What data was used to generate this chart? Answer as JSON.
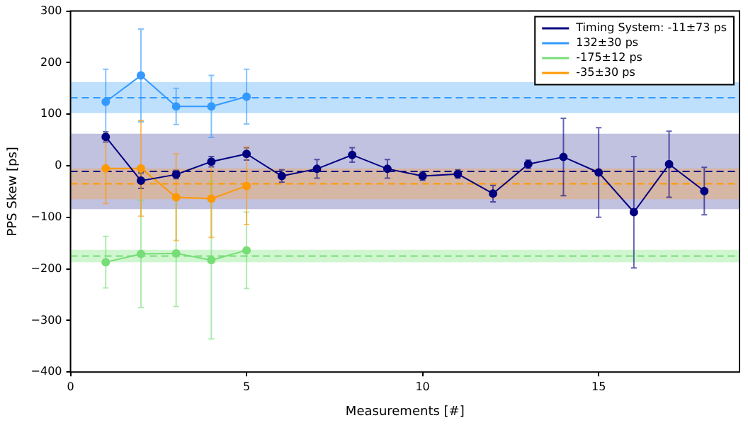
{
  "chart_data": {
    "type": "line",
    "xlabel": "Measurements [#]",
    "ylabel": "PPS Skew [ps]",
    "xlim": [
      0,
      19
    ],
    "xticks": [
      0,
      5,
      10,
      15
    ],
    "ylim": [
      -400,
      300
    ],
    "yticks": [
      {
        "value": -400,
        "label": "−400"
      },
      {
        "value": -300,
        "label": "−300"
      },
      {
        "value": -200,
        "label": "−200"
      },
      {
        "value": -100,
        "label": "−100"
      },
      0,
      100,
      200,
      300
    ],
    "grid": false,
    "legend": "top right",
    "marker": "circle",
    "series": [
      {
        "name": "Timing System: -11±73 ps",
        "color": "#000080",
        "x": [
          1,
          2,
          3,
          4,
          5,
          6,
          7,
          8,
          9,
          10,
          11,
          12,
          13,
          14,
          15,
          16,
          17,
          18
        ],
        "values": [
          56,
          -29,
          -17,
          8,
          23,
          -20,
          -6,
          21,
          -6,
          -20,
          -16,
          -54,
          3,
          17,
          -13,
          -90,
          3,
          -49
        ],
        "errors": [
          10,
          15,
          8,
          10,
          12,
          12,
          18,
          14,
          18,
          8,
          8,
          16,
          8,
          75,
          87,
          108,
          64,
          46
        ]
      },
      {
        "name": "132±30 ps",
        "color": "#3399ff",
        "x": [
          1,
          2,
          3,
          4,
          5
        ],
        "values": [
          124,
          175,
          115,
          115,
          134
        ],
        "errors": [
          63,
          90,
          35,
          60,
          53
        ]
      },
      {
        "name": "-175±12 ps",
        "color": "#77dd77",
        "x": [
          1,
          2,
          3,
          4,
          5
        ],
        "values": [
          -187,
          -171,
          -170,
          -183,
          -164
        ],
        "errors": [
          50,
          104,
          103,
          153,
          74
        ]
      },
      {
        "name": "-35±30 ps",
        "color": "#ff9900",
        "x": [
          1,
          2,
          3,
          4,
          5
        ],
        "values": [
          -5,
          -5,
          -61,
          -64,
          -39
        ],
        "errors": [
          68,
          93,
          84,
          75,
          75
        ]
      }
    ],
    "bands": [
      {
        "axis": "y",
        "from": -84,
        "to": 62,
        "color": "#b6b6da"
      },
      {
        "axis": "y",
        "from": 102,
        "to": 162,
        "color": "#b3dbfb"
      },
      {
        "axis": "y",
        "from": -187,
        "to": -163,
        "color": "#c8f5c8"
      },
      {
        "axis": "y",
        "from": -65,
        "to": -5,
        "color": "#d9b49a"
      }
    ],
    "ref_lines": [
      {
        "axis": "y",
        "value": -11,
        "color": "#000080",
        "line_style": "dashed"
      },
      {
        "axis": "y",
        "value": 132,
        "color": "#3399ff",
        "line_style": "dashed"
      },
      {
        "axis": "y",
        "value": -175,
        "color": "#77dd77",
        "line_style": "dashed"
      },
      {
        "axis": "y",
        "value": -35,
        "color": "#ff9900",
        "line_style": "dashed"
      }
    ]
  }
}
